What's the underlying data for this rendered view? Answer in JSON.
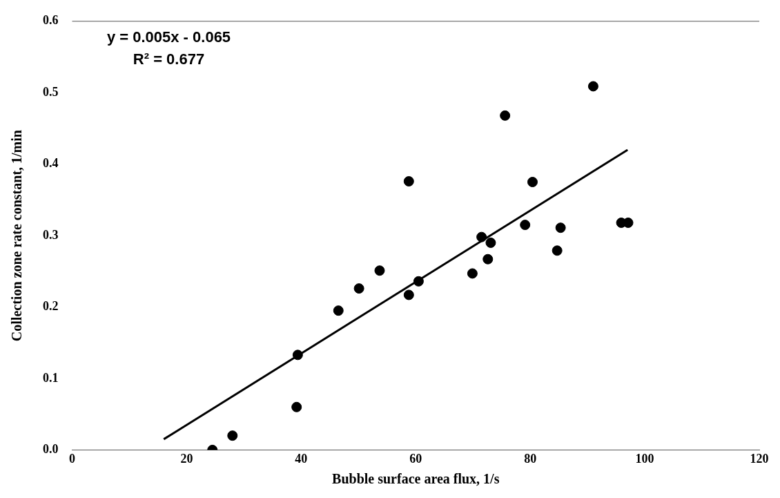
{
  "chart_data": {
    "type": "scatter",
    "xlabel": "Bubble surface area flux, 1/s",
    "ylabel": "Collection zone rate constant, 1/min",
    "annotations": [
      "y = 0.005x - 0.065",
      "R² = 0.677"
    ],
    "series": [
      {
        "color": "#000000",
        "x": [
          24.5,
          28.0,
          39.2,
          39.4,
          46.5,
          50.1,
          53.7,
          58.8,
          58.8,
          60.5,
          69.9,
          71.5,
          72.6,
          73.1,
          75.6,
          79.1,
          80.4,
          84.7,
          85.3,
          91.0,
          95.9,
          97.1
        ],
        "values": [
          0.0,
          0.02,
          0.06,
          0.133,
          0.195,
          0.226,
          0.251,
          0.376,
          0.217,
          0.236,
          0.247,
          0.298,
          0.267,
          0.29,
          0.468,
          0.315,
          0.375,
          0.279,
          0.311,
          0.509,
          0.318,
          0.318
        ]
      },
      {
        "type": "line",
        "color": "#000000",
        "marker": "none",
        "x": [
          16,
          97
        ],
        "values": [
          0.015,
          0.42
        ]
      }
    ],
    "xlim": [
      0,
      120
    ],
    "xticks": [
      0,
      20,
      40,
      60,
      80,
      100,
      120
    ],
    "ylim": [
      0,
      0.6
    ],
    "yticks": [
      {
        "value": 0,
        "label": "0.0"
      },
      {
        "value": 0.1,
        "label": "0.1"
      },
      {
        "value": 0.2,
        "label": "0.2"
      },
      {
        "value": 0.3,
        "label": "0.3"
      },
      {
        "value": 0.4,
        "label": "0.4"
      },
      {
        "value": 0.5,
        "label": "0.5"
      },
      {
        "value": 0.6,
        "label": "0.6"
      }
    ],
    "grid": false,
    "legend": false,
    "marker": "circle"
  }
}
